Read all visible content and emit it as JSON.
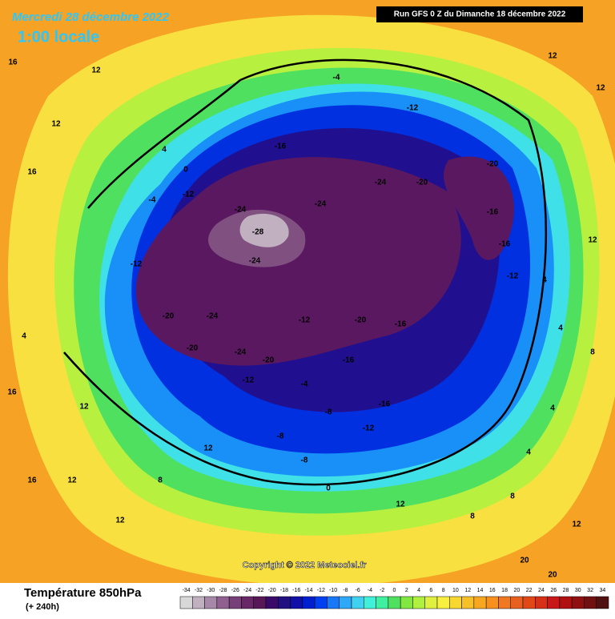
{
  "header": {
    "date": "Mercredi 28 décembre 2022",
    "time": "1:00 locale",
    "run": "Run GFS 0 Z du Dimanche 18 décembre 2022"
  },
  "map": {
    "copyright": "Copyright © 2022 Meteociel.fr",
    "labels": [
      16,
      12,
      12,
      16,
      4,
      0,
      -4,
      -12,
      -24,
      -28,
      -24,
      -24,
      -24,
      -20,
      -12,
      -4,
      -16,
      -20,
      -16,
      -16,
      -12,
      4,
      4,
      4,
      4,
      8,
      8,
      12,
      0,
      12,
      8,
      12,
      12,
      16,
      16,
      12,
      4,
      -12,
      -20,
      -24,
      -24,
      -20,
      -12,
      -20,
      -16,
      -16,
      -12,
      -8,
      -8,
      -8,
      -16,
      -4,
      -12,
      -20,
      20,
      20,
      12,
      8,
      12,
      12,
      12
    ]
  },
  "legend": {
    "title": "Température 850hPa",
    "subtitle": "(+ 240h)",
    "ticks": [
      -34,
      -32,
      -30,
      -28,
      -26,
      -24,
      -22,
      -20,
      -18,
      -16,
      -14,
      -12,
      -10,
      -8,
      -6,
      -4,
      -2,
      0,
      2,
      4,
      6,
      8,
      10,
      12,
      14,
      16,
      18,
      20,
      22,
      24,
      26,
      28,
      30,
      32,
      34
    ],
    "colors": [
      "#d8d8d8",
      "#c0b0c0",
      "#a888a8",
      "#906090",
      "#784078",
      "#682868",
      "#581858",
      "#3a0a6a",
      "#201080",
      "#1010a8",
      "#0020d0",
      "#0040f0",
      "#1878f8",
      "#30a8f8",
      "#40d0f0",
      "#40f0d8",
      "#40f0a0",
      "#50e060",
      "#80e840",
      "#b0f040",
      "#e0f040",
      "#f8f040",
      "#f8d830",
      "#f8c028",
      "#f8a820",
      "#f89020",
      "#f07820",
      "#e86020",
      "#e04818",
      "#d83018",
      "#c81818",
      "#b01010",
      "#901010",
      "#701010",
      "#501010"
    ]
  }
}
